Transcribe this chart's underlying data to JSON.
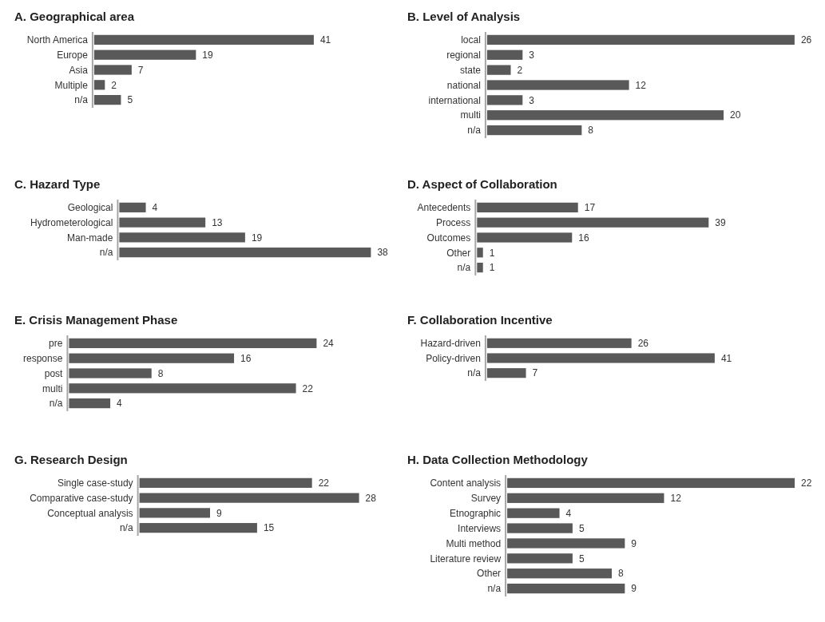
{
  "chart_data": [
    {
      "type": "bar",
      "orientation": "horizontal",
      "title": "A. Geographical area",
      "categories": [
        "North America",
        "Europe",
        "Asia",
        "Multiple",
        "n/a"
      ],
      "values": [
        41,
        19,
        7,
        2,
        5
      ],
      "color": "#595959",
      "data_labels": true
    },
    {
      "type": "bar",
      "orientation": "horizontal",
      "title": "B. Level of Analysis",
      "categories": [
        "local",
        "regional",
        "state",
        "national",
        "international",
        "multi",
        "n/a"
      ],
      "values": [
        26,
        3,
        2,
        12,
        3,
        20,
        8
      ],
      "color": "#595959",
      "data_labels": true
    },
    {
      "type": "bar",
      "orientation": "horizontal",
      "title": "C. Hazard Type",
      "categories": [
        "Geological",
        "Hydrometerological",
        "Man-made",
        "n/a"
      ],
      "values": [
        4,
        13,
        19,
        38
      ],
      "color": "#595959",
      "data_labels": true
    },
    {
      "type": "bar",
      "orientation": "horizontal",
      "title": "D. Aspect of Collaboration",
      "categories": [
        "Antecedents",
        "Process",
        "Outcomes",
        "Other",
        "n/a"
      ],
      "values": [
        17,
        39,
        16,
        1,
        1
      ],
      "color": "#595959",
      "data_labels": true
    },
    {
      "type": "bar",
      "orientation": "horizontal",
      "title": "E. Crisis Management Phase",
      "categories": [
        "pre",
        "response",
        "post",
        "multi",
        "n/a"
      ],
      "values": [
        24,
        16,
        8,
        22,
        4
      ],
      "color": "#595959",
      "data_labels": true
    },
    {
      "type": "bar",
      "orientation": "horizontal",
      "title": "F. Collaboration Incentive",
      "categories": [
        "Hazard-driven",
        "Policy-driven",
        "n/a"
      ],
      "values": [
        26,
        41,
        7
      ],
      "color": "#595959",
      "data_labels": true
    },
    {
      "type": "bar",
      "orientation": "horizontal",
      "title": "G. Research Design",
      "categories": [
        "Single case-study",
        "Comparative case-study",
        "Conceptual analysis",
        "n/a"
      ],
      "values": [
        22,
        28,
        9,
        15
      ],
      "color": "#595959",
      "data_labels": true
    },
    {
      "type": "bar",
      "orientation": "horizontal",
      "title": "H. Data Collection Methodology",
      "categories": [
        "Content analysis",
        "Survey",
        "Etnographic",
        "Interviews",
        "Multi method",
        "Literature review",
        "Other",
        "n/a"
      ],
      "values": [
        22,
        12,
        4,
        5,
        9,
        5,
        8,
        9
      ],
      "color": "#595959",
      "data_labels": true
    }
  ]
}
